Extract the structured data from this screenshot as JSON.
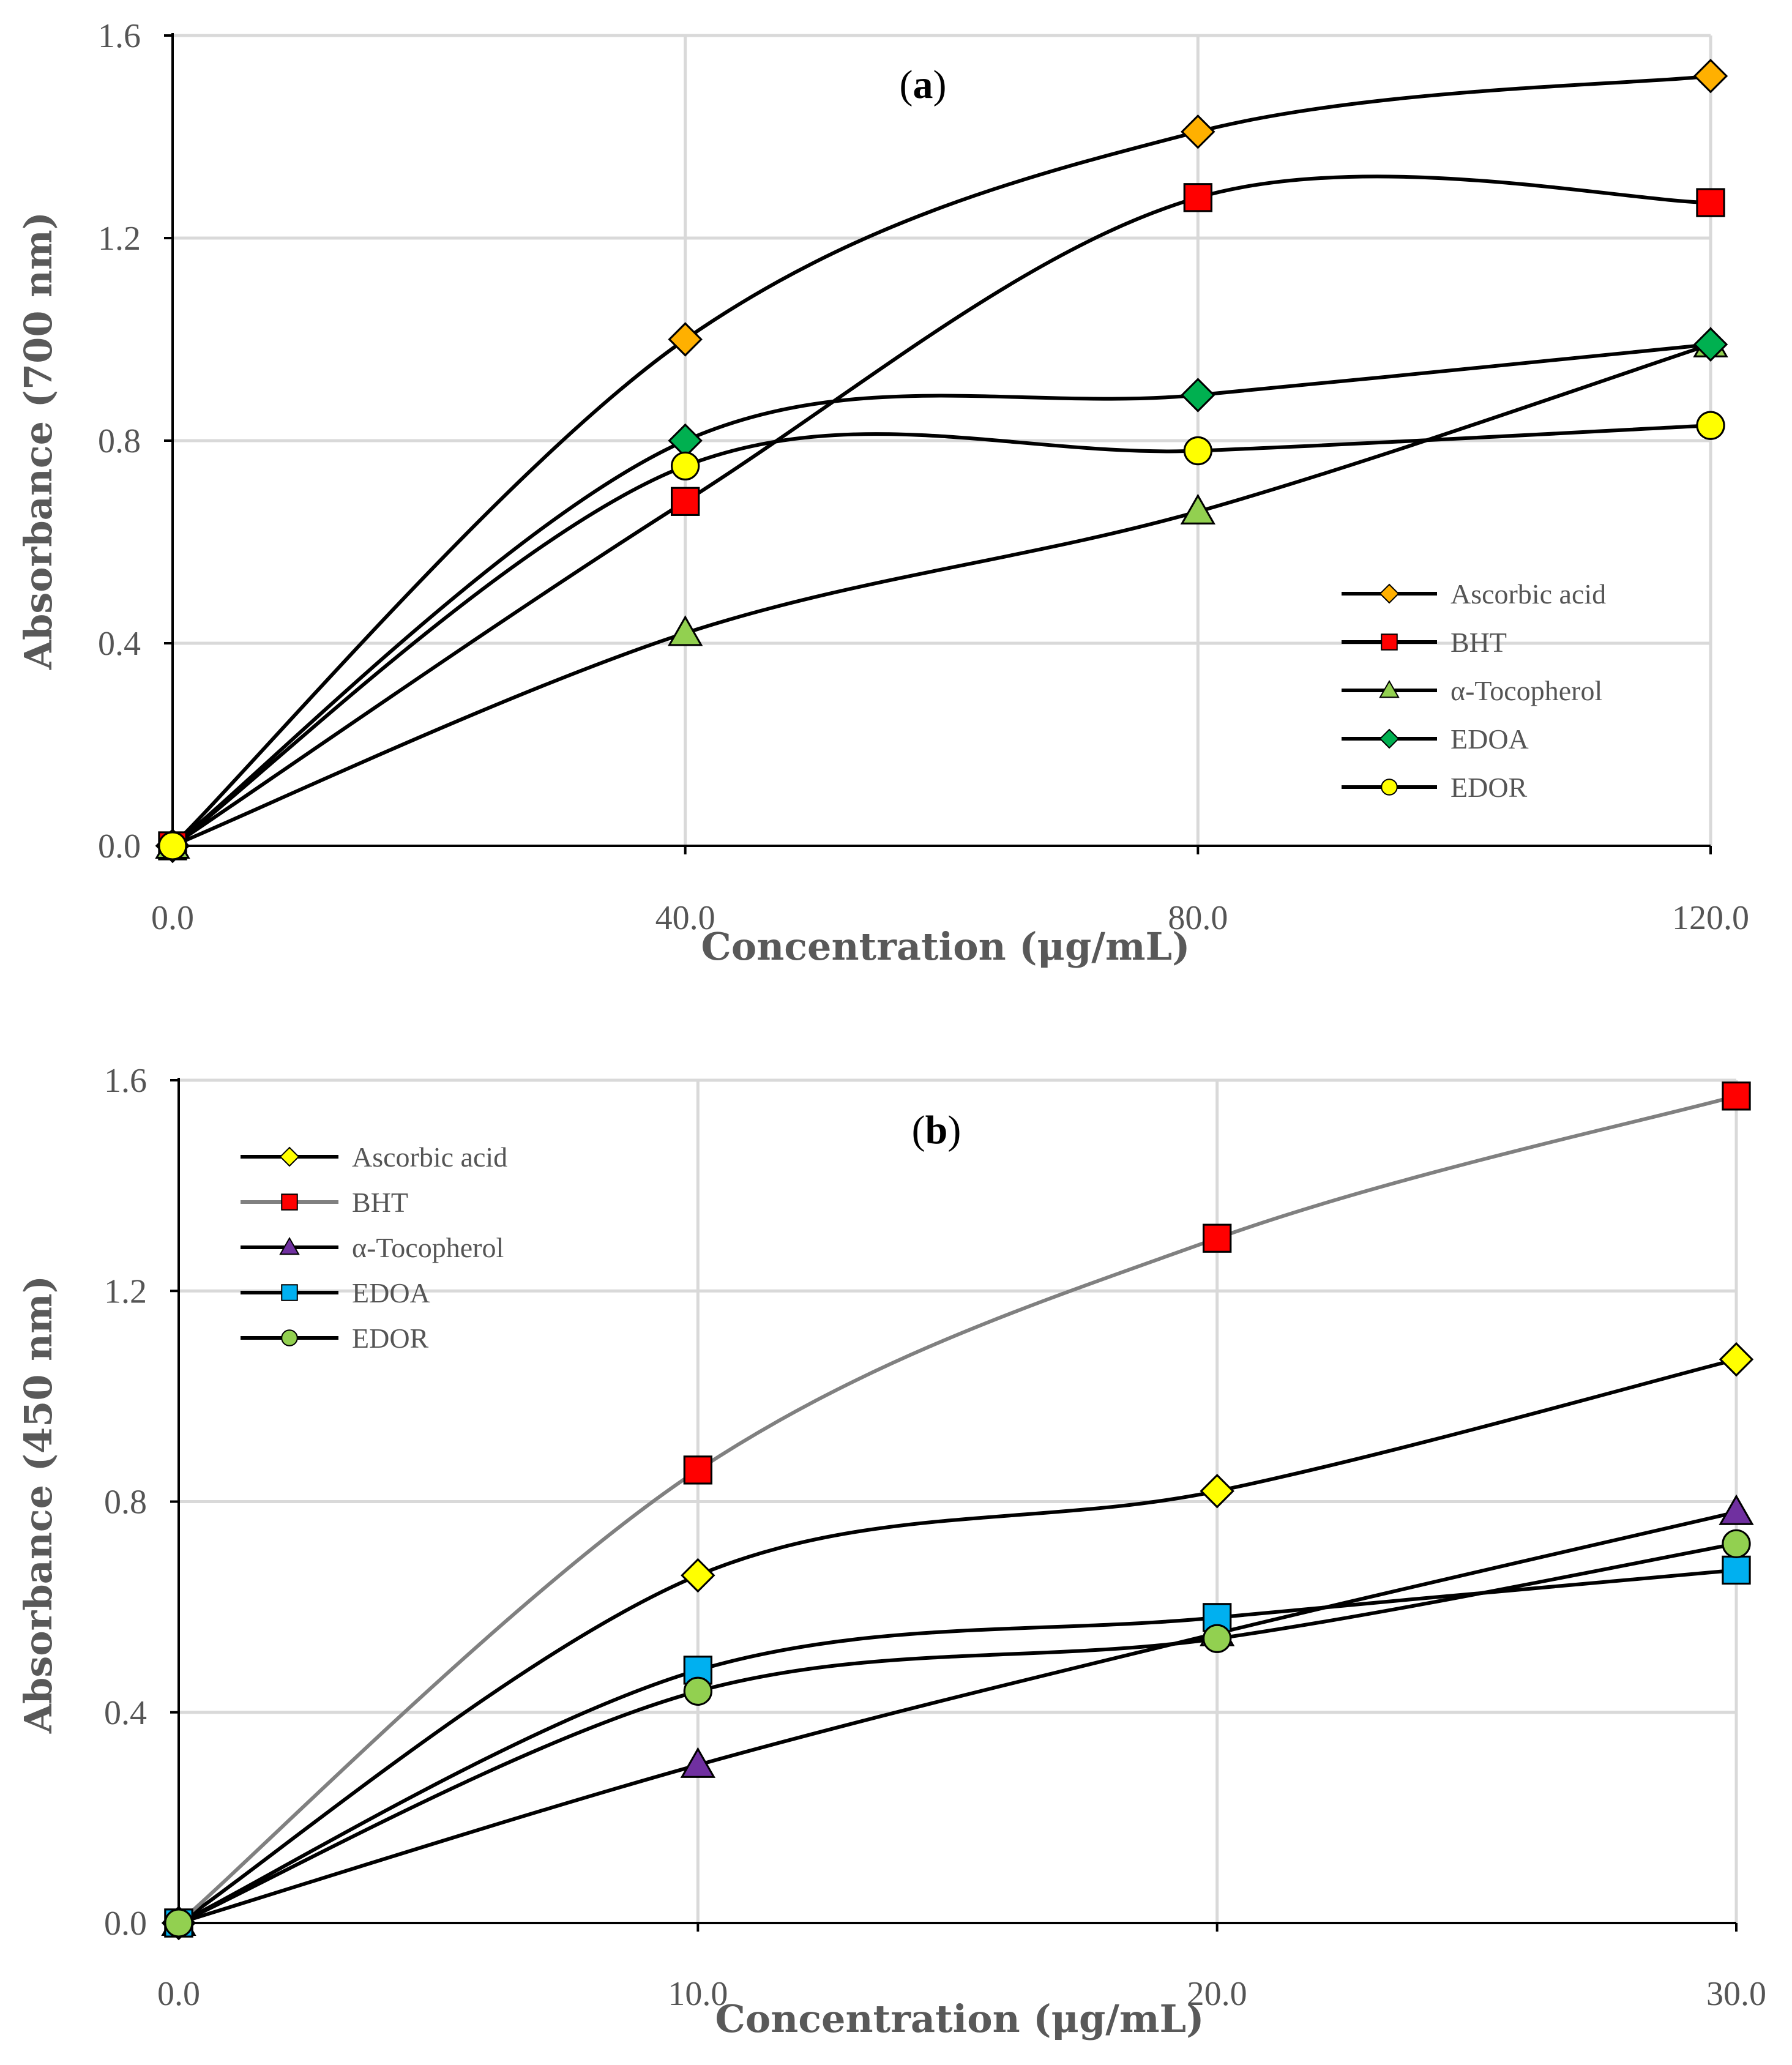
{
  "chart_data": [
    {
      "type": "line",
      "panel_label": "a",
      "title": "",
      "xlabel": "Concentration (μg/mL)",
      "ylabel": "Absorbance (700 nm)",
      "x": [
        0,
        40,
        80,
        120
      ],
      "xticks": [
        "0.0",
        "40.0",
        "80.0",
        "120.0"
      ],
      "xlim": [
        0,
        120
      ],
      "yticks": [
        "0.0",
        "0.4",
        "0.8",
        "1.2",
        "1.6"
      ],
      "ylim": [
        0,
        1.6
      ],
      "grid": true,
      "legend_position": "bottom-right",
      "series": [
        {
          "name": "Ascorbic acid",
          "marker": "diamond",
          "color": "#FFB000",
          "values": [
            0,
            1.0,
            1.41,
            1.52
          ]
        },
        {
          "name": "BHT",
          "marker": "square",
          "color": "#FF0000",
          "values": [
            0,
            0.68,
            1.28,
            1.27
          ]
        },
        {
          "name": "α-Tocopherol",
          "marker": "triangle",
          "color": "#92D050",
          "values": [
            0,
            0.42,
            0.66,
            0.99
          ]
        },
        {
          "name": "EDOA",
          "marker": "diamond",
          "color": "#00B050",
          "values": [
            0,
            0.8,
            0.89,
            0.99
          ]
        },
        {
          "name": "EDOR",
          "marker": "circle",
          "color": "#FFFF00",
          "values": [
            0,
            0.75,
            0.78,
            0.83
          ]
        }
      ]
    },
    {
      "type": "line",
      "panel_label": "b",
      "title": "",
      "xlabel": "Concentration (μg/mL)",
      "ylabel": "Absorbance (450 nm)",
      "x": [
        0,
        10,
        20,
        30
      ],
      "xticks": [
        "0.0",
        "10.0",
        "20.0",
        "30.0"
      ],
      "xlim": [
        0,
        30
      ],
      "yticks": [
        "0.0",
        "0.4",
        "0.8",
        "1.2",
        "1.6"
      ],
      "ylim": [
        0,
        1.6
      ],
      "grid": true,
      "legend_position": "top-left",
      "series": [
        {
          "name": "Ascorbic acid",
          "marker": "diamond",
          "color": "#FFFF00",
          "line_color": "#000000",
          "values": [
            0,
            0.66,
            0.82,
            1.07
          ]
        },
        {
          "name": "BHT",
          "marker": "square",
          "color": "#FF0000",
          "line_color": "#808080",
          "values": [
            0,
            0.86,
            1.3,
            1.57
          ]
        },
        {
          "name": "α-Tocopherol",
          "marker": "triangle",
          "color": "#7030A0",
          "line_color": "#000000",
          "values": [
            0,
            0.3,
            0.55,
            0.78
          ]
        },
        {
          "name": "EDOA",
          "marker": "square",
          "color": "#00B0F0",
          "line_color": "#000000",
          "values": [
            0,
            0.48,
            0.58,
            0.67
          ]
        },
        {
          "name": "EDOR",
          "marker": "circle",
          "color": "#92D050",
          "line_color": "#000000",
          "values": [
            0,
            0.44,
            0.54,
            0.72
          ]
        }
      ]
    }
  ]
}
